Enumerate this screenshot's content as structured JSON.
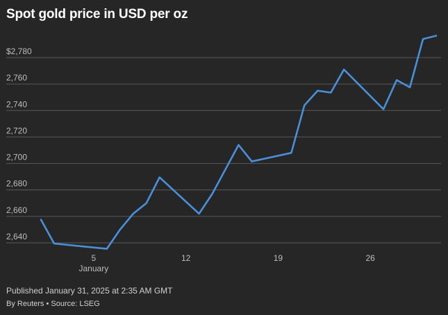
{
  "header": {
    "title": "Spot gold price in USD per oz"
  },
  "footer": {
    "published": "Published January 31, 2025 at 2:35 AM GMT",
    "byline": "By Reuters • Source: LSEG"
  },
  "colors": {
    "background": "#262626",
    "line": "#4a90d9",
    "grid": "#5a5a5a",
    "axis_text": "#bdbdbd"
  },
  "chart_data": {
    "type": "line",
    "title": "Spot gold price in USD per oz",
    "ylim": [
      2630,
      2800
    ],
    "xlim": [
      "2025-01-01",
      "2025-01-31"
    ],
    "y_ticks": [
      {
        "value": 2640,
        "label": "2,640"
      },
      {
        "value": 2660,
        "label": "2,660"
      },
      {
        "value": 2680,
        "label": "2,680"
      },
      {
        "value": 2700,
        "label": "2,700"
      },
      {
        "value": 2720,
        "label": "2,720"
      },
      {
        "value": 2740,
        "label": "2,740"
      },
      {
        "value": 2760,
        "label": "2,760"
      },
      {
        "value": 2780,
        "label": "$2,780"
      }
    ],
    "x_ticks": [
      {
        "date": "2025-01-05",
        "label": "5",
        "sublabel": "January"
      },
      {
        "date": "2025-01-12",
        "label": "12"
      },
      {
        "date": "2025-01-19",
        "label": "19"
      },
      {
        "date": "2025-01-26",
        "label": "26"
      }
    ],
    "grid": true,
    "series": [
      {
        "points": [
          {
            "x": "2025-01-01",
            "y": 2657.5
          },
          {
            "x": "2025-01-02",
            "y": 2639.5
          },
          {
            "x": "2025-01-06",
            "y": 2635.5
          },
          {
            "x": "2025-01-07",
            "y": 2650
          },
          {
            "x": "2025-01-08",
            "y": 2662
          },
          {
            "x": "2025-01-09",
            "y": 2670
          },
          {
            "x": "2025-01-10",
            "y": 2689.5
          },
          {
            "x": "2025-01-13",
            "y": 2662
          },
          {
            "x": "2025-01-14",
            "y": 2677
          },
          {
            "x": "2025-01-16",
            "y": 2714
          },
          {
            "x": "2025-01-17",
            "y": 2701.5
          },
          {
            "x": "2025-01-20",
            "y": 2708
          },
          {
            "x": "2025-01-21",
            "y": 2744
          },
          {
            "x": "2025-01-22",
            "y": 2755
          },
          {
            "x": "2025-01-23",
            "y": 2753.5
          },
          {
            "x": "2025-01-24",
            "y": 2771
          },
          {
            "x": "2025-01-27",
            "y": 2741
          },
          {
            "x": "2025-01-28",
            "y": 2763
          },
          {
            "x": "2025-01-29",
            "y": 2757.5
          },
          {
            "x": "2025-01-30",
            "y": 2794
          },
          {
            "x": "2025-01-31",
            "y": 2796.5
          }
        ]
      }
    ]
  }
}
